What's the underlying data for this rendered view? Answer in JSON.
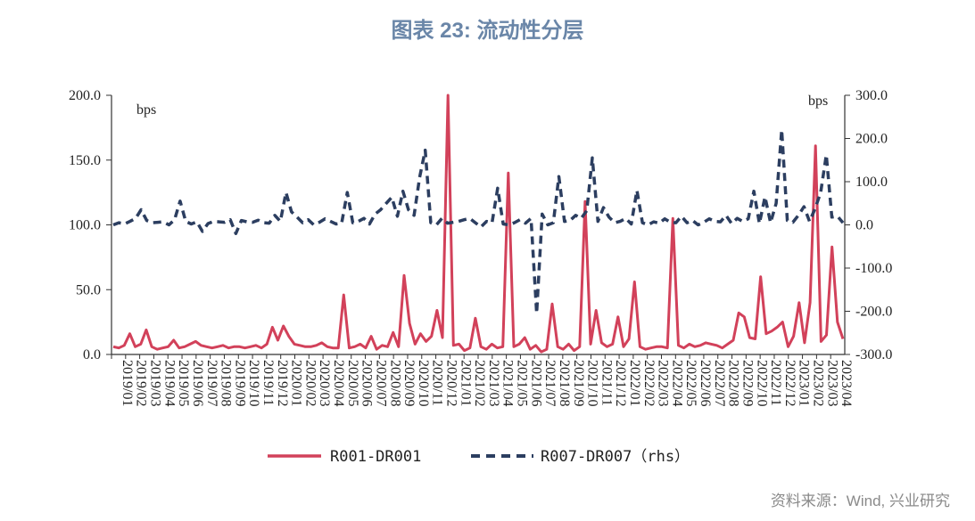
{
  "title": "图表 23: 流动性分层",
  "source": "资料来源：Wind, 兴业研究",
  "chart_data": {
    "type": "line",
    "left_axis": {
      "label": "bps",
      "ylim": [
        0,
        200
      ],
      "ticks": [
        "0.0",
        "50.0",
        "100.0",
        "150.0",
        "200.0"
      ]
    },
    "right_axis": {
      "label": "bps",
      "ylim": [
        -300,
        300
      ],
      "ticks": [
        "-300.0",
        "-200.0",
        "-100.0",
        "0.0",
        "100.0",
        "200.0",
        "300.0"
      ]
    },
    "x_ticks": [
      "2019/01",
      "2019/02",
      "2019/03",
      "2019/04",
      "2019/05",
      "2019/06",
      "2019/07",
      "2019/08",
      "2019/09",
      "2019/10",
      "2019/11",
      "2019/12",
      "2020/01",
      "2020/02",
      "2020/03",
      "2020/04",
      "2020/05",
      "2020/06",
      "2020/07",
      "2020/08",
      "2020/09",
      "2020/10",
      "2020/11",
      "2020/12",
      "2021/01",
      "2021/02",
      "2021/03",
      "2021/04",
      "2021/05",
      "2021/06",
      "2021/07",
      "2021/08",
      "2021/09",
      "2021/10",
      "2021/11",
      "2021/12",
      "2022/01",
      "2022/02",
      "2022/03",
      "2022/04",
      "2022/05",
      "2022/06",
      "2022/07",
      "2022/08",
      "2022/09",
      "2022/10",
      "2022/11",
      "2022/12",
      "2023/01",
      "2023/02",
      "2023/03",
      "2023/04"
    ],
    "grid": false,
    "legend_position": "bottom",
    "series": [
      {
        "name": "R001-DR001",
        "axis": "left",
        "color": "#d2415a",
        "style": "solid",
        "values": [
          6,
          5,
          7,
          16,
          6,
          8,
          19,
          6,
          4,
          5,
          6,
          11,
          5,
          6,
          8,
          10,
          7,
          6,
          5,
          6,
          7,
          5,
          6,
          6,
          5,
          6,
          7,
          5,
          8,
          21,
          11,
          22,
          14,
          8,
          7,
          6,
          6,
          7,
          9,
          6,
          5,
          5,
          46,
          5,
          6,
          8,
          5,
          14,
          4,
          7,
          6,
          17,
          6,
          61,
          24,
          8,
          16,
          10,
          14,
          34,
          13,
          200,
          7,
          8,
          3,
          5,
          28,
          6,
          4,
          8,
          5,
          6,
          140,
          6,
          8,
          13,
          4,
          7,
          2,
          4,
          39,
          6,
          4,
          8,
          3,
          6,
          118,
          8,
          34,
          9,
          6,
          8,
          29,
          6,
          12,
          56,
          6,
          4,
          5,
          6,
          6,
          5,
          105,
          7,
          5,
          8,
          6,
          7,
          9,
          8,
          7,
          5,
          8,
          11,
          32,
          29,
          13,
          12,
          60,
          16,
          18,
          21,
          25,
          6,
          14,
          40,
          9,
          40,
          161,
          10,
          15,
          83,
          25,
          12
        ]
      },
      {
        "name": "R007-DR007（rhs）",
        "axis": "right",
        "color": "#2c3e60",
        "style": "dashed",
        "values": [
          0,
          5,
          2,
          8,
          15,
          35,
          10,
          5,
          6,
          7,
          0,
          12,
          55,
          8,
          2,
          7,
          -15,
          3,
          8,
          7,
          6,
          12,
          -20,
          10,
          7,
          6,
          11,
          5,
          4,
          22,
          8,
          75,
          30,
          18,
          5,
          12,
          0,
          6,
          14,
          8,
          2,
          4,
          75,
          5,
          8,
          15,
          2,
          25,
          35,
          50,
          64,
          20,
          78,
          35,
          22,
          110,
          173,
          5,
          0,
          15,
          4,
          6,
          8,
          12,
          15,
          5,
          -5,
          8,
          5,
          85,
          2,
          0,
          5,
          12,
          4,
          15,
          -205,
          25,
          0,
          5,
          112,
          8,
          10,
          22,
          15,
          33,
          155,
          8,
          40,
          18,
          5,
          8,
          15,
          2,
          80,
          5,
          0,
          7,
          4,
          14,
          6,
          5,
          20,
          5,
          10,
          0,
          6,
          14,
          8,
          7,
          22,
          3,
          15,
          8,
          14,
          78,
          3,
          65,
          5,
          50,
          220,
          10,
          6,
          22,
          42,
          8,
          38,
          75,
          162,
          18,
          20,
          5
        ]
      }
    ]
  }
}
